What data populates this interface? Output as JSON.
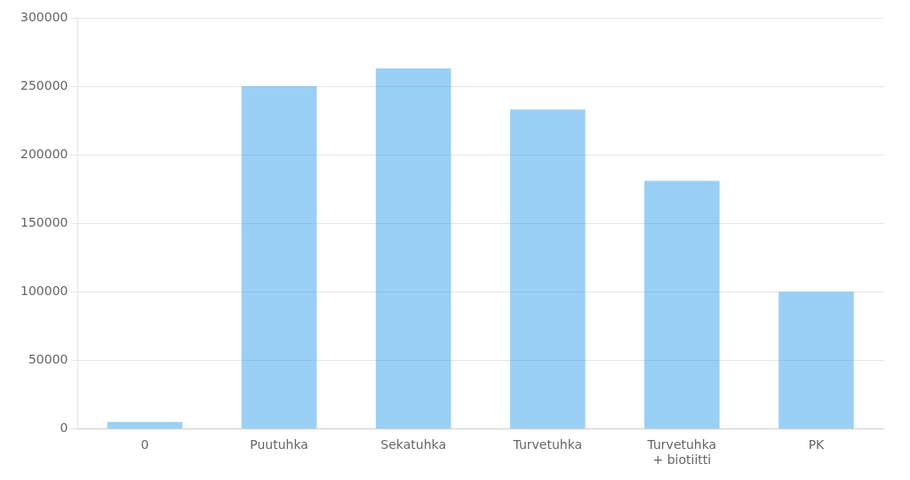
{
  "chart_data": {
    "type": "bar",
    "categories": [
      "0",
      "Puutuhka",
      "Sekatuhka",
      "Turvetuhka",
      "Turvetuhka\n+ biotiitti",
      "PK"
    ],
    "values": [
      5000,
      250000,
      263000,
      233000,
      181000,
      100000
    ],
    "ylim": [
      0,
      300000
    ],
    "yticks": [
      0,
      50000,
      100000,
      150000,
      200000,
      250000,
      300000
    ],
    "grid": true
  }
}
